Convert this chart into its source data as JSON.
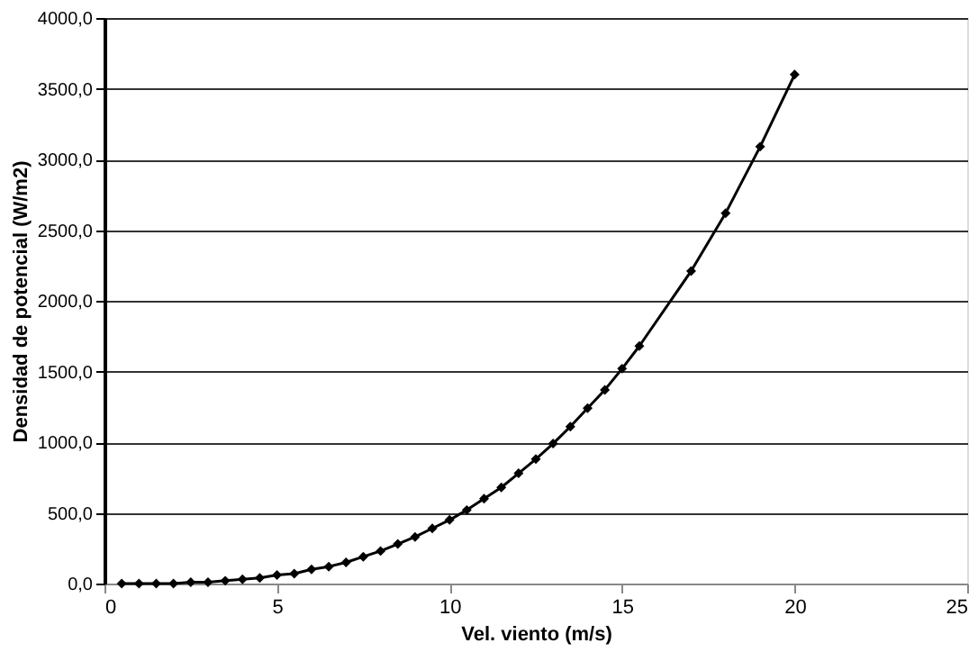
{
  "chart_data": {
    "type": "line",
    "xlabel": "Vel. viento (m/s)",
    "ylabel": "Densidad de potencial (W/m2)",
    "x": [
      0.5,
      1,
      1.5,
      2,
      2.5,
      3,
      3.5,
      4,
      4.5,
      5,
      5.5,
      6,
      6.5,
      7,
      7.5,
      8,
      8.5,
      9,
      9.5,
      10,
      10.5,
      11,
      11.5,
      12,
      12.5,
      13,
      13.5,
      14,
      14.5,
      15,
      15.5,
      17,
      18,
      19,
      20
    ],
    "series": [
      {
        "color": "#000000",
        "values": [
          0,
          0,
          0,
          0,
          10,
          10,
          20,
          30,
          40,
          60,
          70,
          100,
          120,
          150,
          190,
          230,
          280,
          330,
          390,
          450,
          520,
          600,
          680,
          780,
          880,
          990,
          1110,
          1240,
          1370,
          1520,
          1680,
          2210,
          2620,
          3090,
          3600
        ]
      }
    ],
    "xlim": [
      0,
      25
    ],
    "xticks": [
      0,
      5,
      10,
      15,
      20,
      25
    ],
    "ylim": [
      0,
      4000
    ],
    "yticks": [
      {
        "value": 0,
        "label": "0,0"
      },
      {
        "value": 500,
        "label": "500,0"
      },
      {
        "value": 1000,
        "label": "1000,0"
      },
      {
        "value": 1500,
        "label": "1500,0"
      },
      {
        "value": 2000,
        "label": "2000,0"
      },
      {
        "value": 2500,
        "label": "2500,0"
      },
      {
        "value": 3000,
        "label": "3000,0"
      },
      {
        "value": 3500,
        "label": "3500,0"
      },
      {
        "value": 4000,
        "label": "4000,0"
      }
    ],
    "grid": "y",
    "marker": "diamond",
    "line_style": "solid"
  }
}
